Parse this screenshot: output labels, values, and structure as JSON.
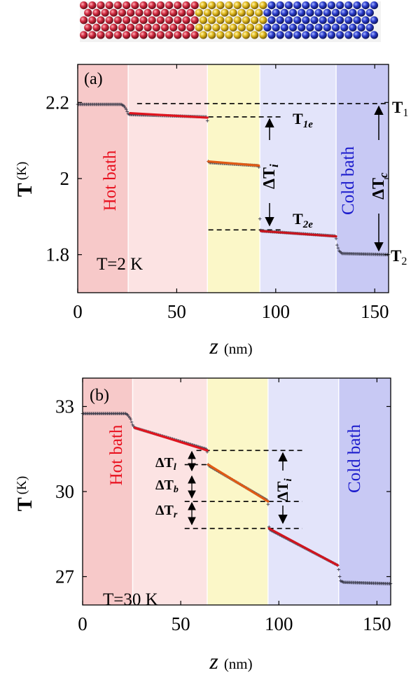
{
  "chart_data": [
    {
      "type": "line",
      "panel_label": "(a)",
      "condition_label": "T=2 K",
      "xlabel": "z",
      "xlabel_unit": "(nm)",
      "ylabel": "T",
      "ylabel_unit": "(K)",
      "xlim": [
        0,
        157
      ],
      "ylim": [
        1.7,
        2.3
      ],
      "xticks": [
        0,
        50,
        100,
        150
      ],
      "yticks": [
        1.8,
        2,
        2.2
      ],
      "ytick_labels": [
        "1.8",
        "2",
        "2.2"
      ],
      "regions": [
        {
          "x0": 0,
          "x1": 25.5,
          "color": "#f7c9c9",
          "label": "Hot bath",
          "label_color": "#e8101e"
        },
        {
          "x0": 25.5,
          "x1": 65.5,
          "color": "#fce3e3",
          "label": ""
        },
        {
          "x0": 65.5,
          "x1": 92,
          "color": "#fbf7c8",
          "label": ""
        },
        {
          "x0": 92,
          "x1": 130.5,
          "color": "#e3e4fa",
          "label": ""
        },
        {
          "x0": 130.5,
          "x1": 157,
          "color": "#c8c9f4",
          "label": "Cold bath",
          "label_color": "#1a1acc"
        }
      ],
      "series": [
        {
          "role": "markers",
          "color": "#3a3a4a",
          "points": [
            [
              0,
              2.195
            ],
            [
              22,
              2.195
            ],
            [
              23.5,
              2.19
            ],
            [
              24.5,
              2.182
            ],
            [
              25.5,
              2.17
            ],
            [
              26.5,
              2.168
            ],
            [
              27,
              2.168
            ],
            [
              65,
              2.162
            ],
            [
              65.5,
              2.152
            ],
            [
              66,
              2.045
            ],
            [
              66.5,
              2.042
            ],
            [
              91,
              2.034
            ],
            [
              91.5,
              2.03
            ],
            [
              92,
              1.894
            ],
            [
              92.5,
              1.864
            ],
            [
              93,
              1.862
            ],
            [
              130,
              1.849
            ],
            [
              130.5,
              1.842
            ],
            [
              131,
              1.825
            ],
            [
              132,
              1.81
            ],
            [
              133.5,
              1.803
            ],
            [
              157,
              1.8
            ]
          ]
        },
        {
          "role": "fit",
          "color": "#e0141e",
          "points": [
            [
              26.5,
              2.172
            ],
            [
              65.5,
              2.16
            ]
          ]
        },
        {
          "role": "fit",
          "color": "#e05a14",
          "points": [
            [
              66,
              2.045
            ],
            [
              91.5,
              2.034
            ]
          ]
        },
        {
          "role": "fit",
          "color": "#c8141e",
          "points": [
            [
              92.5,
              1.862
            ],
            [
              130.5,
              1.848
            ]
          ]
        }
      ],
      "reference_lines": [
        {
          "y": 2.197,
          "x0": 30,
          "x1": 157
        },
        {
          "y": 2.162,
          "x0": 66,
          "x1": 104
        },
        {
          "y": 1.865,
          "x0": 66,
          "x1": 104
        }
      ],
      "annotations": {
        "T1": "T",
        "T1_sub": "1",
        "T1e": "T",
        "T1e_sub": "1e",
        "T2e": "T",
        "T2e_sub": "2e",
        "T2": "T",
        "T2_sub": "2",
        "dTi": "ΔT",
        "dTi_sub": "i",
        "dTc": "ΔT",
        "dTc_sub": "c"
      }
    },
    {
      "type": "line",
      "panel_label": "(b)",
      "condition_label": "T=30 K",
      "xlabel": "z",
      "xlabel_unit": "(nm)",
      "ylabel": "T",
      "ylabel_unit": "(K)",
      "xlim": [
        0,
        157
      ],
      "ylim": [
        26,
        34
      ],
      "xticks": [
        0,
        50,
        100,
        150
      ],
      "yticks": [
        27,
        30,
        33
      ],
      "ytick_labels": [
        "27",
        "30",
        "33"
      ],
      "regions": [
        {
          "x0": 0,
          "x1": 25.5,
          "color": "#f7c9c9",
          "label": "Hot bath",
          "label_color": "#e8101e"
        },
        {
          "x0": 25.5,
          "x1": 63.5,
          "color": "#fce3e3",
          "label": ""
        },
        {
          "x0": 63.5,
          "x1": 94.5,
          "color": "#fbf7c8",
          "label": ""
        },
        {
          "x0": 94.5,
          "x1": 130.5,
          "color": "#e3e4fa",
          "label": ""
        },
        {
          "x0": 130.5,
          "x1": 157,
          "color": "#c8c9f4",
          "label": "Cold bath",
          "label_color": "#1a1acc"
        }
      ],
      "series": [
        {
          "role": "markers",
          "color": "#3a3a4a",
          "points": [
            [
              0,
              32.75
            ],
            [
              22,
              32.75
            ],
            [
              23,
              32.7
            ],
            [
              24.5,
              32.55
            ],
            [
              25.5,
              32.35
            ],
            [
              26.5,
              32.25
            ],
            [
              63,
              31.5
            ],
            [
              63.5,
              31.4
            ],
            [
              64,
              30.95
            ],
            [
              64.5,
              30.9
            ],
            [
              94,
              29.7
            ],
            [
              94.5,
              29.55
            ],
            [
              95,
              28.75
            ],
            [
              95.5,
              28.65
            ],
            [
              130,
              27.4
            ],
            [
              130.5,
              27.25
            ],
            [
              131,
              27.0
            ],
            [
              131.5,
              26.85
            ],
            [
              133,
              26.8
            ],
            [
              157,
              26.75
            ]
          ]
        },
        {
          "role": "fit",
          "color": "#e0141e",
          "points": [
            [
              26.5,
              32.25
            ],
            [
              63.5,
              31.45
            ]
          ]
        },
        {
          "role": "fit",
          "color": "#e05a14",
          "points": [
            [
              64,
              30.95
            ],
            [
              94.5,
              29.65
            ]
          ]
        },
        {
          "role": "fit",
          "color": "#d0141e",
          "points": [
            [
              95,
              28.7
            ],
            [
              130,
              27.4
            ]
          ]
        }
      ],
      "reference_lines": [
        {
          "y": 31.45,
          "x0": 58,
          "x1": 112
        },
        {
          "y": 30.95,
          "x0": 52,
          "x1": 65
        },
        {
          "y": 29.65,
          "x0": 52,
          "x1": 112
        },
        {
          "y": 28.7,
          "x0": 52,
          "x1": 112
        }
      ],
      "annotations": {
        "dTl": "ΔT",
        "dTl_sub": "l",
        "dTb": "ΔT",
        "dTb_sub": "b",
        "dTr": "ΔT",
        "dTr_sub": "r",
        "dTi": "ΔT",
        "dTi_sub": "i"
      }
    }
  ],
  "atoms_strip": {
    "colors": {
      "hot": "#c8283c",
      "interface": "#e6c21e",
      "cold": "#2a3ccc"
    }
  }
}
